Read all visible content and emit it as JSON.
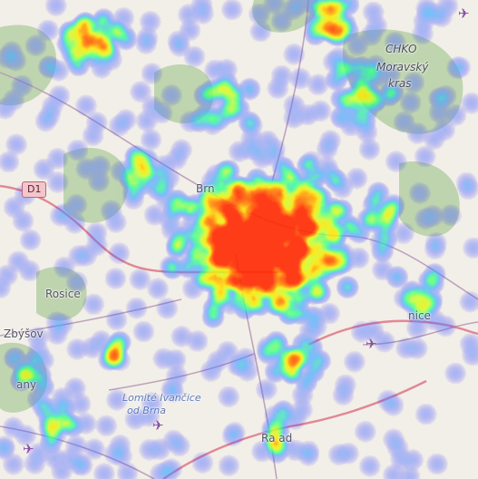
{
  "map": {
    "road_shield": "D1",
    "labels": [
      {
        "id": "chko",
        "text": "CHKO"
      },
      {
        "id": "moravsky",
        "text": "Moravský"
      },
      {
        "id": "kras",
        "text": "kras"
      },
      {
        "id": "brno",
        "text": "Brn"
      },
      {
        "id": "rosice",
        "text": "Rosice"
      },
      {
        "id": "zbysov",
        "text": "Zbýšov"
      },
      {
        "id": "any",
        "text": "any"
      },
      {
        "id": "nice",
        "text": "nice"
      },
      {
        "id": "ivancice",
        "text": "Lomité Ivančice"
      },
      {
        "id": "brna",
        "text": "od Brna"
      },
      {
        "id": "rajhrad",
        "text": "Ra  ad"
      }
    ],
    "icons": [
      "airport-icon",
      "airport-icon",
      "airport-icon",
      "airport-icon"
    ],
    "colors": {
      "land": "#f2efe9",
      "forest": "#a8c79a",
      "motorway": "#e37989",
      "road": "#a98aa8",
      "heat_low": "#3f7bff",
      "heat_mid": "#33ff66",
      "heat_high": "#ffee00",
      "heat_peak": "#ff3b00"
    }
  }
}
